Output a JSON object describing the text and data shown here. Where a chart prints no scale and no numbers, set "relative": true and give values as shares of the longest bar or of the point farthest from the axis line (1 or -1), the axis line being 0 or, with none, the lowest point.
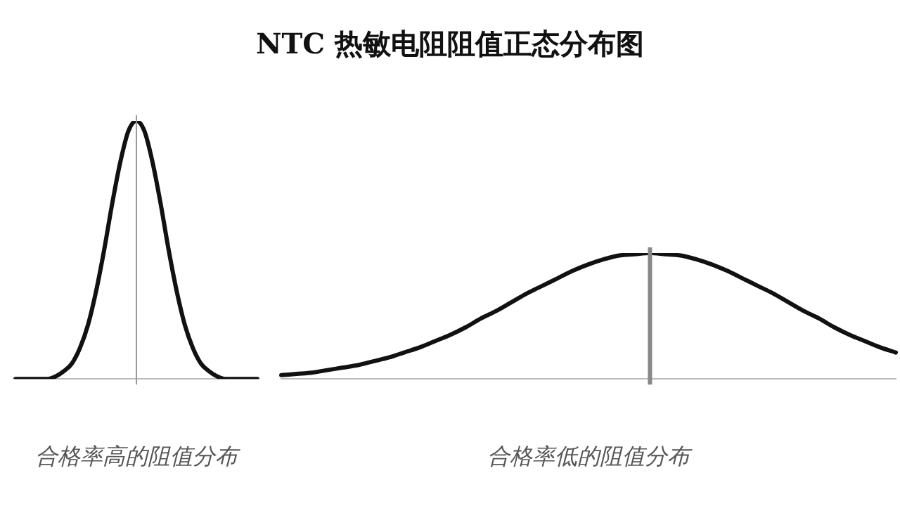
{
  "chart_data": [
    {
      "type": "line",
      "title": "NTC 热敏电阻阻值正态分布图",
      "xlabel": "合格率高的阻值分布",
      "relative": true,
      "marker": "none",
      "line_style": "solid",
      "legend": false,
      "grid": false,
      "categories": [
        null,
        null,
        null,
        null,
        null,
        null,
        null,
        null,
        null,
        null,
        null,
        null,
        null,
        null,
        null,
        null,
        null,
        null,
        null,
        null,
        null,
        null,
        null,
        null,
        null,
        null,
        null,
        null,
        null,
        null,
        null
      ],
      "series": [
        {
          "color": "#111111",
          "values": [
            0,
            0,
            0,
            0,
            0,
            0.01,
            0.03,
            0.06,
            0.12,
            0.21,
            0.34,
            0.5,
            0.68,
            0.84,
            0.96,
            1,
            0.96,
            0.84,
            0.68,
            0.5,
            0.34,
            0.21,
            0.12,
            0.06,
            0.03,
            0.01,
            0,
            0,
            0,
            0,
            0
          ]
        }
      ]
    },
    {
      "type": "line",
      "xlabel": "合格率低的阻值分布",
      "relative": true,
      "marker": "none",
      "line_style": "solid",
      "legend": false,
      "grid": false,
      "categories": [
        null,
        null,
        null,
        null,
        null,
        null,
        null,
        null,
        null,
        null,
        null,
        null,
        null,
        null,
        null,
        null,
        null,
        null,
        null,
        null,
        null,
        null,
        null,
        null,
        null,
        null,
        null,
        null,
        null,
        null,
        null,
        null,
        null,
        null,
        null,
        null,
        null,
        null,
        null,
        null,
        null
      ],
      "series": [
        {
          "color": "#111111",
          "values": [
            0.03,
            0.04,
            0.05,
            0.07,
            0.09,
            0.11,
            0.14,
            0.17,
            0.21,
            0.25,
            0.3,
            0.35,
            0.41,
            0.48,
            0.54,
            0.61,
            0.68,
            0.74,
            0.8,
            0.86,
            0.91,
            0.95,
            0.98,
            0.99,
            1,
            0.99,
            0.98,
            0.95,
            0.91,
            0.86,
            0.8,
            0.74,
            0.68,
            0.61,
            0.54,
            0.48,
            0.41,
            0.35,
            0.3,
            0.25,
            0.21
          ]
        }
      ]
    }
  ]
}
